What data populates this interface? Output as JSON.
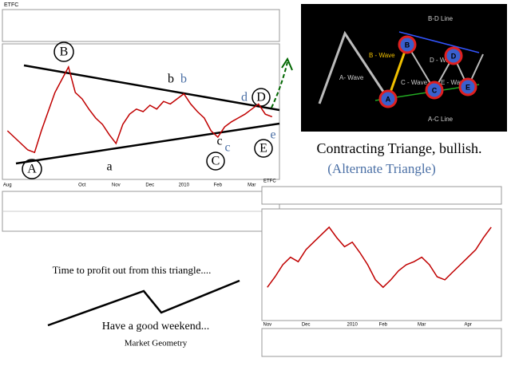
{
  "main_chart": {
    "type": "line",
    "title": "ETFC",
    "color": "#c00000",
    "categories": [
      "Aug",
      null,
      null,
      null,
      null,
      null,
      null,
      null,
      null,
      null,
      null,
      "Oct",
      null,
      null,
      null,
      null,
      "Nov",
      null,
      null,
      null,
      null,
      "Dec",
      null,
      null,
      null,
      null,
      "2010",
      null,
      null,
      null,
      null,
      "Feb",
      null,
      null,
      null,
      null,
      "Mar",
      null,
      null,
      null
    ],
    "values": [
      1.45,
      1.4,
      1.35,
      1.3,
      1.28,
      1.45,
      1.6,
      1.75,
      1.85,
      1.95,
      1.75,
      1.7,
      1.62,
      1.55,
      1.5,
      1.42,
      1.35,
      1.5,
      1.58,
      1.62,
      1.6,
      1.65,
      1.62,
      1.68,
      1.66,
      1.7,
      1.74,
      1.66,
      1.6,
      1.55,
      1.45,
      1.4,
      1.48,
      1.52,
      1.55,
      1.58,
      1.62,
      1.66,
      1.58,
      1.56
    ],
    "ylim": [
      1.1,
      2.1
    ],
    "waves": [
      "A",
      "B",
      "a",
      "b",
      "b",
      "C",
      "c",
      "c",
      "D",
      "d",
      "E",
      "e"
    ]
  },
  "alt_chart": {
    "type": "line",
    "title": "ETFC",
    "color": "#c00000",
    "categories": [
      "Nov",
      null,
      null,
      null,
      null,
      "Dec",
      null,
      null,
      null,
      null,
      null,
      "2010",
      null,
      null,
      null,
      "Feb",
      null,
      null,
      null,
      null,
      "Mar",
      null,
      null,
      null,
      null,
      null,
      "Apr",
      null,
      null,
      null
    ],
    "values": [
      1.55,
      1.62,
      1.7,
      1.75,
      1.72,
      1.8,
      1.85,
      1.9,
      1.95,
      1.88,
      1.82,
      1.85,
      1.78,
      1.7,
      1.6,
      1.55,
      1.6,
      1.66,
      1.7,
      1.72,
      1.75,
      1.7,
      1.62,
      1.6,
      1.65,
      1.7,
      1.75,
      1.8,
      1.88,
      1.95
    ],
    "ylim": [
      1.35,
      2.05
    ]
  },
  "diagram": {
    "nodes": [
      "A",
      "B",
      "C",
      "D",
      "E"
    ],
    "labels": [
      "B-D Line",
      "B - Wave",
      "D - Wave",
      "A- Wave",
      "C - Wave",
      "E - Wave",
      "A-C Line"
    ]
  },
  "text": {
    "headline": "Contracting Triange, bullish.",
    "subhead": "(Alternate Triangle)",
    "note": "Time to profit out from this triangle....",
    "greeting": "Have a good weekend...",
    "signature": "Market Geometry"
  }
}
